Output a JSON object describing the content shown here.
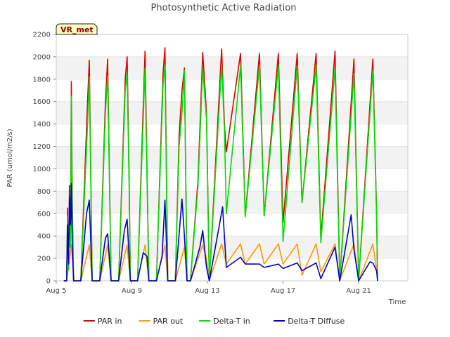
{
  "chart_data": {
    "type": "line",
    "title": "Photosynthetic Active Radiation",
    "xlabel": "Time",
    "ylabel": "PAR (umol/m2/s)",
    "site_badge": "VR_met",
    "xlim": [
      5,
      23.6
    ],
    "ylim": [
      0,
      2200
    ],
    "x_unit": "day of August",
    "x_ticks": [
      {
        "x": 5,
        "label": "Aug 5"
      },
      {
        "x": 9,
        "label": "Aug 9"
      },
      {
        "x": 13,
        "label": "Aug 13"
      },
      {
        "x": 17,
        "label": "Aug 17"
      },
      {
        "x": 21,
        "label": "Aug 21"
      }
    ],
    "y_ticks": [
      0,
      200,
      400,
      600,
      800,
      1000,
      1200,
      1400,
      1600,
      1800,
      2000,
      2200
    ],
    "grid": "horizontal bands",
    "legend_position": "bottom",
    "series": [
      {
        "name": "PAR in",
        "color": "#dd0000",
        "points": [
          [
            5.4,
            0
          ],
          [
            5.55,
            0
          ],
          [
            5.6,
            650
          ],
          [
            5.65,
            100
          ],
          [
            5.7,
            850
          ],
          [
            5.75,
            400
          ],
          [
            5.8,
            1780
          ],
          [
            5.85,
            700
          ],
          [
            5.92,
            0
          ],
          [
            6.3,
            0
          ],
          [
            6.65,
            1580
          ],
          [
            6.75,
            1970
          ],
          [
            6.9,
            0
          ],
          [
            7.3,
            0
          ],
          [
            7.6,
            1600
          ],
          [
            7.72,
            1980
          ],
          [
            7.9,
            0
          ],
          [
            8.3,
            0
          ],
          [
            8.65,
            1800
          ],
          [
            8.75,
            2000
          ],
          [
            8.85,
            1000
          ],
          [
            8.92,
            0
          ],
          [
            9.3,
            0
          ],
          [
            9.7,
            2050
          ],
          [
            9.9,
            0
          ],
          [
            10.3,
            0
          ],
          [
            10.65,
            1850
          ],
          [
            10.75,
            2080
          ],
          [
            10.9,
            0
          ],
          [
            11.3,
            0
          ],
          [
            11.5,
            1300
          ],
          [
            11.65,
            1700
          ],
          [
            11.78,
            1900
          ],
          [
            11.92,
            0
          ],
          [
            12.1,
            0
          ],
          [
            12.5,
            900
          ],
          [
            12.75,
            2040
          ],
          [
            12.95,
            1500
          ],
          [
            13.1,
            0
          ],
          [
            13.75,
            2070
          ],
          [
            13.9,
            1400
          ],
          [
            14.0,
            1150
          ],
          [
            14.75,
            2030
          ],
          [
            15.0,
            580
          ],
          [
            15.75,
            2030
          ],
          [
            16.0,
            580
          ],
          [
            16.75,
            2030
          ],
          [
            17.0,
            520
          ],
          [
            17.75,
            2030
          ],
          [
            18.0,
            700
          ],
          [
            18.75,
            2030
          ],
          [
            19.0,
            380
          ],
          [
            19.75,
            2050
          ],
          [
            20.0,
            0
          ],
          [
            20.75,
            1980
          ],
          [
            21.0,
            0
          ],
          [
            21.75,
            1980
          ],
          [
            21.95,
            600
          ],
          [
            22.0,
            0
          ]
        ]
      },
      {
        "name": "PAR out",
        "color": "#ff9900",
        "points": [
          [
            5.4,
            0
          ],
          [
            5.55,
            0
          ],
          [
            5.8,
            320
          ],
          [
            5.9,
            100
          ],
          [
            5.95,
            0
          ],
          [
            6.3,
            0
          ],
          [
            6.75,
            320
          ],
          [
            6.9,
            0
          ],
          [
            7.3,
            0
          ],
          [
            7.72,
            320
          ],
          [
            7.9,
            0
          ],
          [
            8.3,
            0
          ],
          [
            8.75,
            320
          ],
          [
            8.92,
            0
          ],
          [
            9.3,
            0
          ],
          [
            9.7,
            320
          ],
          [
            9.9,
            0
          ],
          [
            10.3,
            0
          ],
          [
            10.75,
            320
          ],
          [
            10.9,
            0
          ],
          [
            11.3,
            0
          ],
          [
            11.78,
            300
          ],
          [
            11.92,
            0
          ],
          [
            12.1,
            0
          ],
          [
            12.75,
            320
          ],
          [
            12.95,
            200
          ],
          [
            13.1,
            0
          ],
          [
            13.75,
            330
          ],
          [
            14.0,
            150
          ],
          [
            14.75,
            330
          ],
          [
            15.0,
            150
          ],
          [
            15.75,
            330
          ],
          [
            16.0,
            150
          ],
          [
            16.75,
            330
          ],
          [
            17.0,
            150
          ],
          [
            17.75,
            330
          ],
          [
            18.0,
            50
          ],
          [
            18.75,
            330
          ],
          [
            19.0,
            80
          ],
          [
            19.75,
            330
          ],
          [
            20.0,
            0
          ],
          [
            20.75,
            330
          ],
          [
            21.0,
            0
          ],
          [
            21.75,
            330
          ],
          [
            21.95,
            100
          ],
          [
            22.0,
            0
          ]
        ]
      },
      {
        "name": "Delta-T in",
        "color": "#00dd00",
        "points": [
          [
            5.4,
            0
          ],
          [
            5.55,
            0
          ],
          [
            5.6,
            580
          ],
          [
            5.65,
            100
          ],
          [
            5.7,
            700
          ],
          [
            5.75,
            300
          ],
          [
            5.8,
            1650
          ],
          [
            5.85,
            600
          ],
          [
            5.92,
            0
          ],
          [
            6.3,
            0
          ],
          [
            6.65,
            1380
          ],
          [
            6.75,
            1820
          ],
          [
            6.9,
            0
          ],
          [
            7.3,
            0
          ],
          [
            7.6,
            1500
          ],
          [
            7.72,
            1830
          ],
          [
            7.9,
            0
          ],
          [
            8.3,
            0
          ],
          [
            8.65,
            1700
          ],
          [
            8.75,
            1850
          ],
          [
            8.85,
            900
          ],
          [
            8.92,
            0
          ],
          [
            9.3,
            0
          ],
          [
            9.7,
            1900
          ],
          [
            9.9,
            0
          ],
          [
            10.3,
            0
          ],
          [
            10.65,
            1750
          ],
          [
            10.75,
            1920
          ],
          [
            10.9,
            0
          ],
          [
            11.3,
            0
          ],
          [
            11.5,
            1200
          ],
          [
            11.65,
            1500
          ],
          [
            11.78,
            1880
          ],
          [
            11.92,
            0
          ],
          [
            12.1,
            0
          ],
          [
            12.5,
            850
          ],
          [
            12.75,
            1900
          ],
          [
            12.95,
            1450
          ],
          [
            13.1,
            0
          ],
          [
            13.75,
            1930
          ],
          [
            13.9,
            1350
          ],
          [
            14.0,
            600
          ],
          [
            14.75,
            1920
          ],
          [
            15.0,
            570
          ],
          [
            15.75,
            1920
          ],
          [
            16.0,
            580
          ],
          [
            16.75,
            1920
          ],
          [
            17.0,
            350
          ],
          [
            17.75,
            1920
          ],
          [
            18.0,
            700
          ],
          [
            18.75,
            1920
          ],
          [
            19.0,
            340
          ],
          [
            19.75,
            1900
          ],
          [
            20.0,
            0
          ],
          [
            20.75,
            1850
          ],
          [
            21.0,
            0
          ],
          [
            21.75,
            1880
          ],
          [
            21.95,
            600
          ],
          [
            22.0,
            0
          ]
        ]
      },
      {
        "name": "Delta-T Diffuse",
        "color": "#0000cc",
        "points": [
          [
            5.4,
            0
          ],
          [
            5.55,
            0
          ],
          [
            5.6,
            500
          ],
          [
            5.65,
            150
          ],
          [
            5.7,
            750
          ],
          [
            5.75,
            500
          ],
          [
            5.8,
            870
          ],
          [
            5.85,
            300
          ],
          [
            5.92,
            0
          ],
          [
            6.3,
            0
          ],
          [
            6.6,
            600
          ],
          [
            6.75,
            720
          ],
          [
            6.9,
            0
          ],
          [
            7.3,
            0
          ],
          [
            7.6,
            380
          ],
          [
            7.72,
            420
          ],
          [
            7.9,
            0
          ],
          [
            8.3,
            0
          ],
          [
            8.6,
            450
          ],
          [
            8.75,
            550
          ],
          [
            8.92,
            0
          ],
          [
            9.3,
            0
          ],
          [
            9.6,
            250
          ],
          [
            9.8,
            220
          ],
          [
            9.9,
            0
          ],
          [
            10.3,
            0
          ],
          [
            10.6,
            220
          ],
          [
            10.75,
            720
          ],
          [
            10.9,
            0
          ],
          [
            11.3,
            0
          ],
          [
            11.65,
            730
          ],
          [
            11.78,
            400
          ],
          [
            11.92,
            0
          ],
          [
            12.1,
            0
          ],
          [
            12.6,
            300
          ],
          [
            12.75,
            450
          ],
          [
            12.95,
            120
          ],
          [
            13.1,
            0
          ],
          [
            13.8,
            660
          ],
          [
            14.0,
            120
          ],
          [
            14.75,
            210
          ],
          [
            15.0,
            150
          ],
          [
            15.75,
            150
          ],
          [
            16.0,
            120
          ],
          [
            16.75,
            150
          ],
          [
            17.0,
            110
          ],
          [
            17.75,
            160
          ],
          [
            18.0,
            90
          ],
          [
            18.75,
            160
          ],
          [
            19.0,
            20
          ],
          [
            19.75,
            300
          ],
          [
            20.0,
            0
          ],
          [
            20.6,
            590
          ],
          [
            20.75,
            280
          ],
          [
            21.0,
            0
          ],
          [
            21.6,
            170
          ],
          [
            21.75,
            160
          ],
          [
            21.95,
            90
          ],
          [
            22.0,
            0
          ]
        ]
      }
    ]
  }
}
